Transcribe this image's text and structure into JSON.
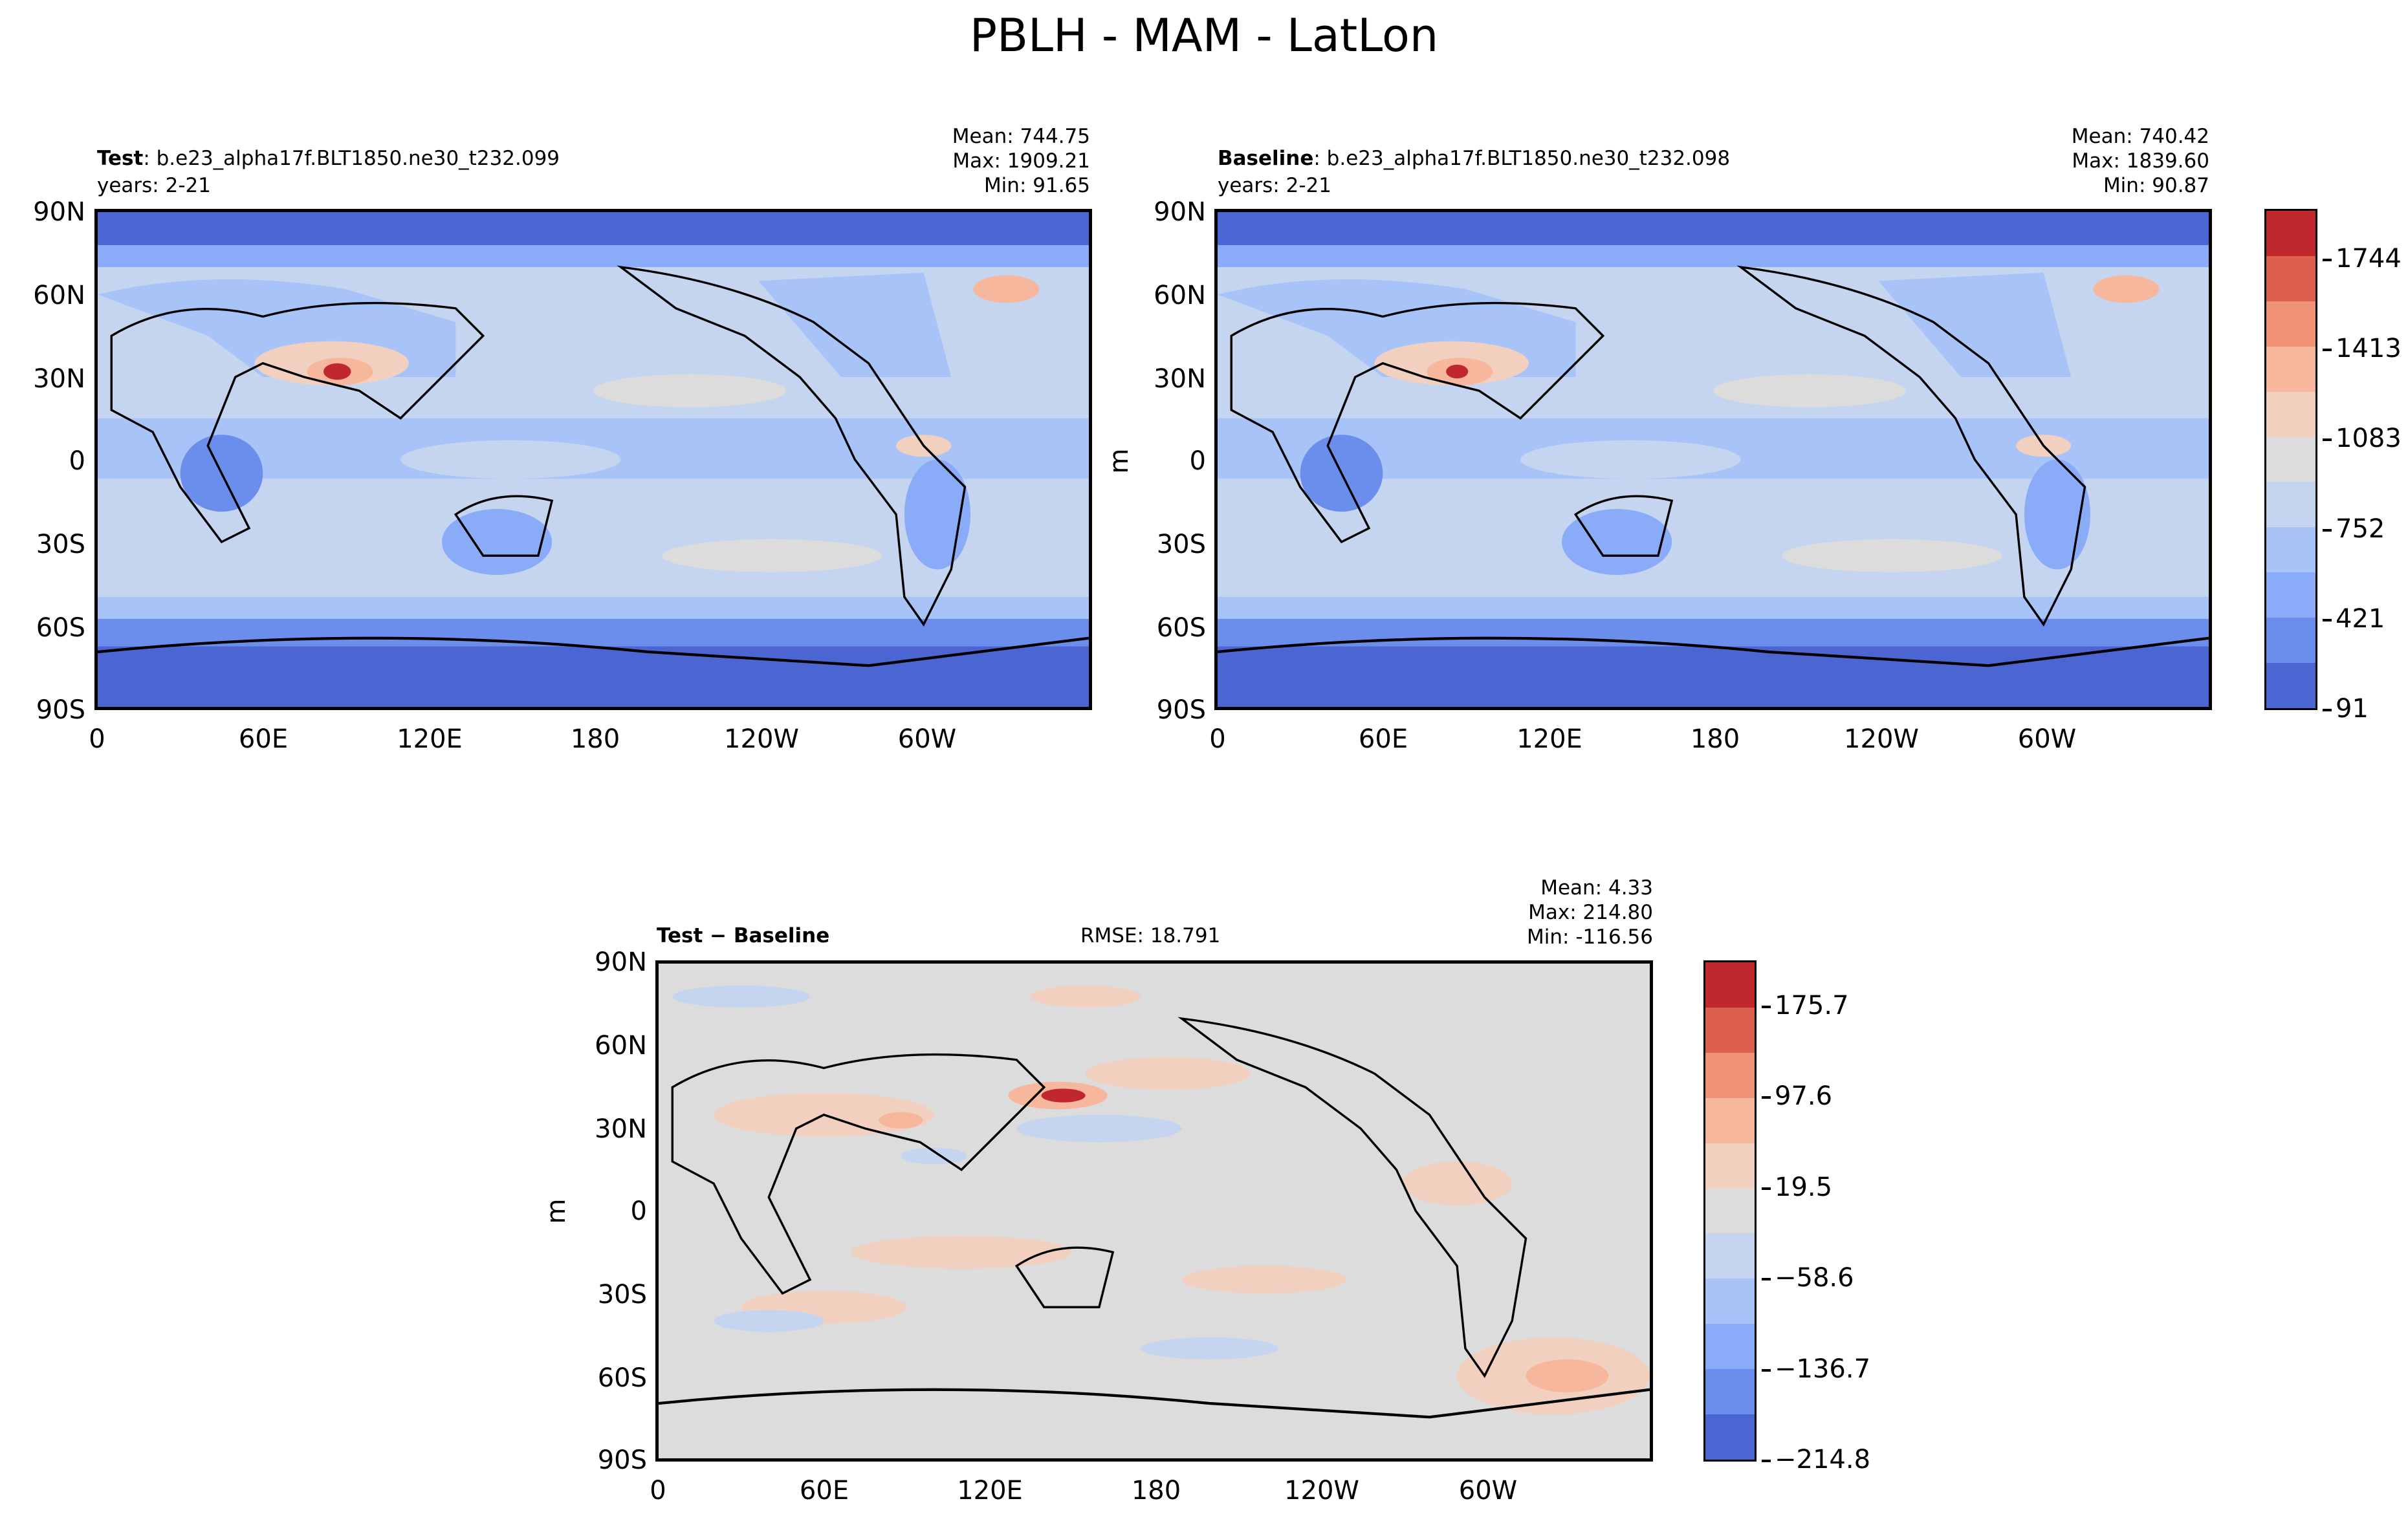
{
  "title": "PBLH - MAM - LatLon",
  "panels": [
    {
      "id": "test",
      "label_bold": "Test",
      "label_text": ": b.e23_alpha17f.BLT1850.ne30_t232.099",
      "years": "years: 2-21",
      "stats": [
        "Mean: 744.75",
        "Max: 1909.21",
        "Min: 91.65"
      ]
    },
    {
      "id": "baseline",
      "label_bold": "Baseline",
      "label_text": ": b.e23_alpha17f.BLT1850.ne30_t232.098",
      "years": "years: 2-21",
      "stats": [
        "Mean: 740.42",
        "Max: 1839.60",
        "Min: 90.87"
      ]
    },
    {
      "id": "diff",
      "label_bold": "Test − Baseline",
      "rmse": "RMSE: 18.791",
      "stats": [
        "Mean:  4.33",
        "Max: 214.80",
        "Min: -116.56"
      ]
    }
  ],
  "y_axis_label": "m",
  "lon_ticks": [
    "0",
    "60E",
    "120E",
    "180",
    "120W",
    "60W"
  ],
  "lat_ticks": [
    "90N",
    "60N",
    "30N",
    "0",
    "30S",
    "60S",
    "90S"
  ],
  "colorbar_top": {
    "ticks": [
      "1744",
      "1413",
      "1083",
      "752",
      "421",
      "91"
    ],
    "colors": [
      "#c0282d",
      "#dd604e",
      "#f09274",
      "#f6b79c",
      "#f2d0c0",
      "#dcdcdc",
      "#c5d5ef",
      "#a8c3f8",
      "#8aacf8",
      "#6b8deb",
      "#4b66d3"
    ]
  },
  "colorbar_diff": {
    "ticks": [
      "175.7",
      "97.6",
      "19.5",
      "−58.6",
      "−136.7",
      "−214.8"
    ],
    "colors": [
      "#c0282d",
      "#dd604e",
      "#f09274",
      "#f6b79c",
      "#f2d0c0",
      "#dcdcdc",
      "#c5d5ef",
      "#a8c3f8",
      "#8aacf8",
      "#6b8deb",
      "#4b66d3"
    ]
  }
}
